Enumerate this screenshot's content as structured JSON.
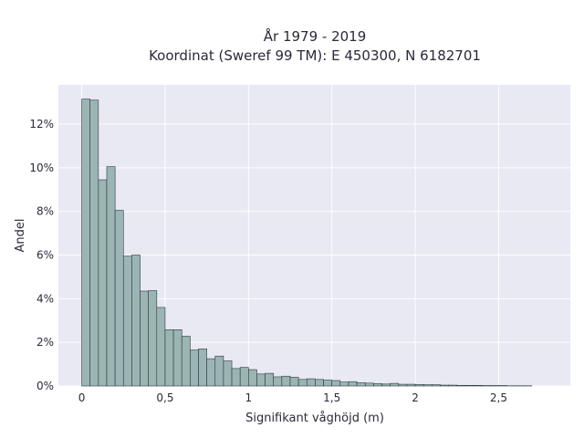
{
  "chart_data": {
    "type": "bar",
    "title_line1": "År 1979 - 2019",
    "title_line2": "Koordinat (Sweref 99 TM): E 450300, N 6182701",
    "xlabel": "Signifikant våghöjd (m)",
    "ylabel": "Andel",
    "xlim": [
      -0.14,
      2.93
    ],
    "ylim": [
      0,
      0.138
    ],
    "x_ticks": [
      {
        "value": 0,
        "label": "0"
      },
      {
        "value": 0.5,
        "label": "0,5"
      },
      {
        "value": 1,
        "label": "1"
      },
      {
        "value": 1.5,
        "label": "1,5"
      },
      {
        "value": 2,
        "label": "2"
      },
      {
        "value": 2.5,
        "label": "2,5"
      }
    ],
    "y_ticks": [
      {
        "value": 0,
        "label": "0%"
      },
      {
        "value": 0.02,
        "label": "2%"
      },
      {
        "value": 0.04,
        "label": "4%"
      },
      {
        "value": 0.06,
        "label": "6%"
      },
      {
        "value": 0.08,
        "label": "8%"
      },
      {
        "value": 0.1,
        "label": "10%"
      },
      {
        "value": 0.12,
        "label": "12%"
      }
    ],
    "bin_start": 0,
    "bin_width": 0.05,
    "values": [
      0.1315,
      0.131,
      0.0945,
      0.1005,
      0.0805,
      0.0595,
      0.06,
      0.0435,
      0.0437,
      0.036,
      0.0258,
      0.0258,
      0.0228,
      0.0165,
      0.017,
      0.0125,
      0.0137,
      0.0115,
      0.008,
      0.0085,
      0.0075,
      0.0055,
      0.0058,
      0.0042,
      0.0045,
      0.004,
      0.003,
      0.0033,
      0.003,
      0.0027,
      0.0025,
      0.0018,
      0.002,
      0.0015,
      0.0013,
      0.0011,
      0.0009,
      0.0012,
      0.0008,
      0.0008,
      0.0007,
      0.0006,
      0.0006,
      0.0004,
      0.0004,
      0.0003,
      0.0003,
      0.0003,
      0.0002,
      0.0002,
      0.0002,
      0.0001,
      0.0001,
      0.0001
    ],
    "grid": true,
    "legend": "none",
    "colors": {
      "bar_fill": "#9bb5b4",
      "bar_stroke": "#2d3a3a",
      "plot_bg": "#e8e9f2",
      "grid": "#ffffff",
      "text": "#2a2a3a"
    }
  }
}
